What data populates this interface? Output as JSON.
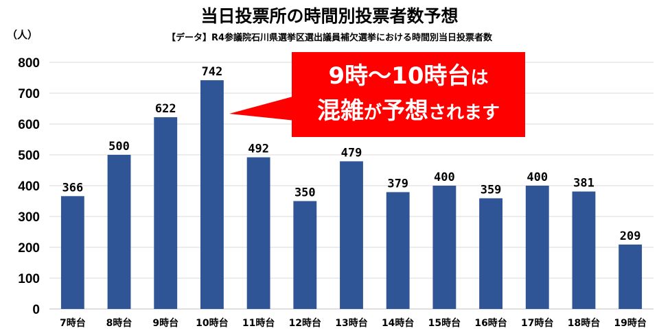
{
  "title": "当日投票所の時間別投票者数予想",
  "subtitle": "【データ】R4参議院石川県選挙区選出議員補欠選挙における時間別当日投票者数",
  "unit_label": "（人）",
  "callout": {
    "line1_big": "9時～10時台",
    "line1_small": "は",
    "line2_big1": "混雑",
    "line2_small1": "が",
    "line2_big2": "予想",
    "line2_small2": "されます"
  },
  "colors": {
    "bar": "#2f5597",
    "grid": "#d9d9d9",
    "callout": "#ff0000"
  },
  "chart_data": {
    "type": "bar",
    "title": "当日投票所の時間別投票者数予想",
    "subtitle": "【データ】R4参議院石川県選挙区選出議員補欠選挙における時間別当日投票者数",
    "xlabel": "",
    "ylabel": "（人）",
    "ylim": [
      0,
      800
    ],
    "yticks": [
      0,
      100,
      200,
      300,
      400,
      500,
      600,
      700,
      800
    ],
    "grid": true,
    "categories": [
      "7時台",
      "8時台",
      "9時台",
      "10時台",
      "11時台",
      "12時台",
      "13時台",
      "14時台",
      "15時台",
      "16時台",
      "17時台",
      "18時台",
      "19時台"
    ],
    "values": [
      366,
      500,
      622,
      742,
      492,
      350,
      479,
      379,
      400,
      359,
      400,
      381,
      209
    ]
  }
}
